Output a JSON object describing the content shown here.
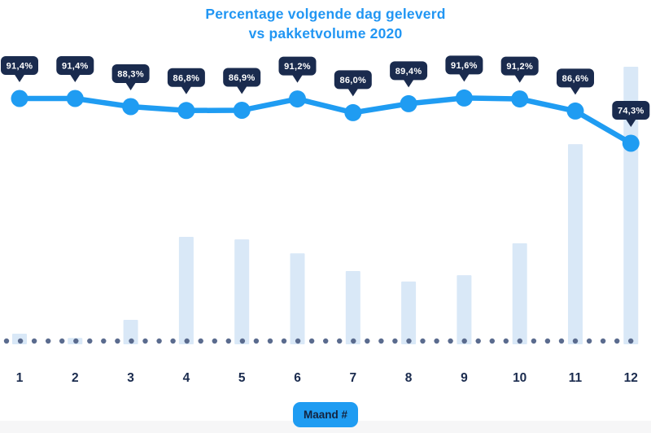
{
  "title": {
    "line1": "Percentage volgende dag geleverd",
    "line2": "vs pakketvolume 2020"
  },
  "x_axis": {
    "title": "Maand #",
    "categories": [
      "1",
      "2",
      "3",
      "4",
      "5",
      "6",
      "7",
      "8",
      "9",
      "10",
      "11",
      "12"
    ]
  },
  "colors": {
    "title_blue": "#2196f3",
    "accent_blue": "#1f9cf2",
    "navy": "#1a2b4e",
    "badge_text": "#ffffff",
    "bar_fill": "#d9e8f7",
    "baseline_dot": "#5a6b8e",
    "footer_strip": "#f6f6f7",
    "month_badge_text": "#13233f"
  },
  "chart_data": {
    "type": "line+bar",
    "title": "Percentage volgende dag geleverd vs pakketvolume 2020",
    "xlabel": "Maand #",
    "ylabel": "",
    "legend": "none",
    "grid": "none",
    "baseline_style": "dotted",
    "categories": [
      "1",
      "2",
      "3",
      "4",
      "5",
      "6",
      "7",
      "8",
      "9",
      "10",
      "11",
      "12"
    ],
    "series": [
      {
        "name": "Percentage volgende dag geleverd",
        "type": "line",
        "unit": "%",
        "values": [
          91.4,
          91.4,
          88.3,
          86.8,
          86.9,
          91.2,
          86.0,
          89.4,
          91.6,
          91.2,
          86.6,
          74.3
        ],
        "point_labels": [
          "91,4%",
          "91,4%",
          "88,3%",
          "86,8%",
          "86,9%",
          "91,2%",
          "86,0%",
          "89,4%",
          "91,6%",
          "91,2%",
          "86,6%",
          "74,3%"
        ]
      },
      {
        "name": "Pakketvolume 2020",
        "type": "bar",
        "unit": "relative volume (no value axis shown; max month = 100)",
        "values": [
          3.8,
          2.3,
          8.8,
          38.7,
          37.8,
          32.8,
          26.4,
          22.6,
          24.9,
          36.4,
          72.1,
          100
        ]
      }
    ]
  }
}
